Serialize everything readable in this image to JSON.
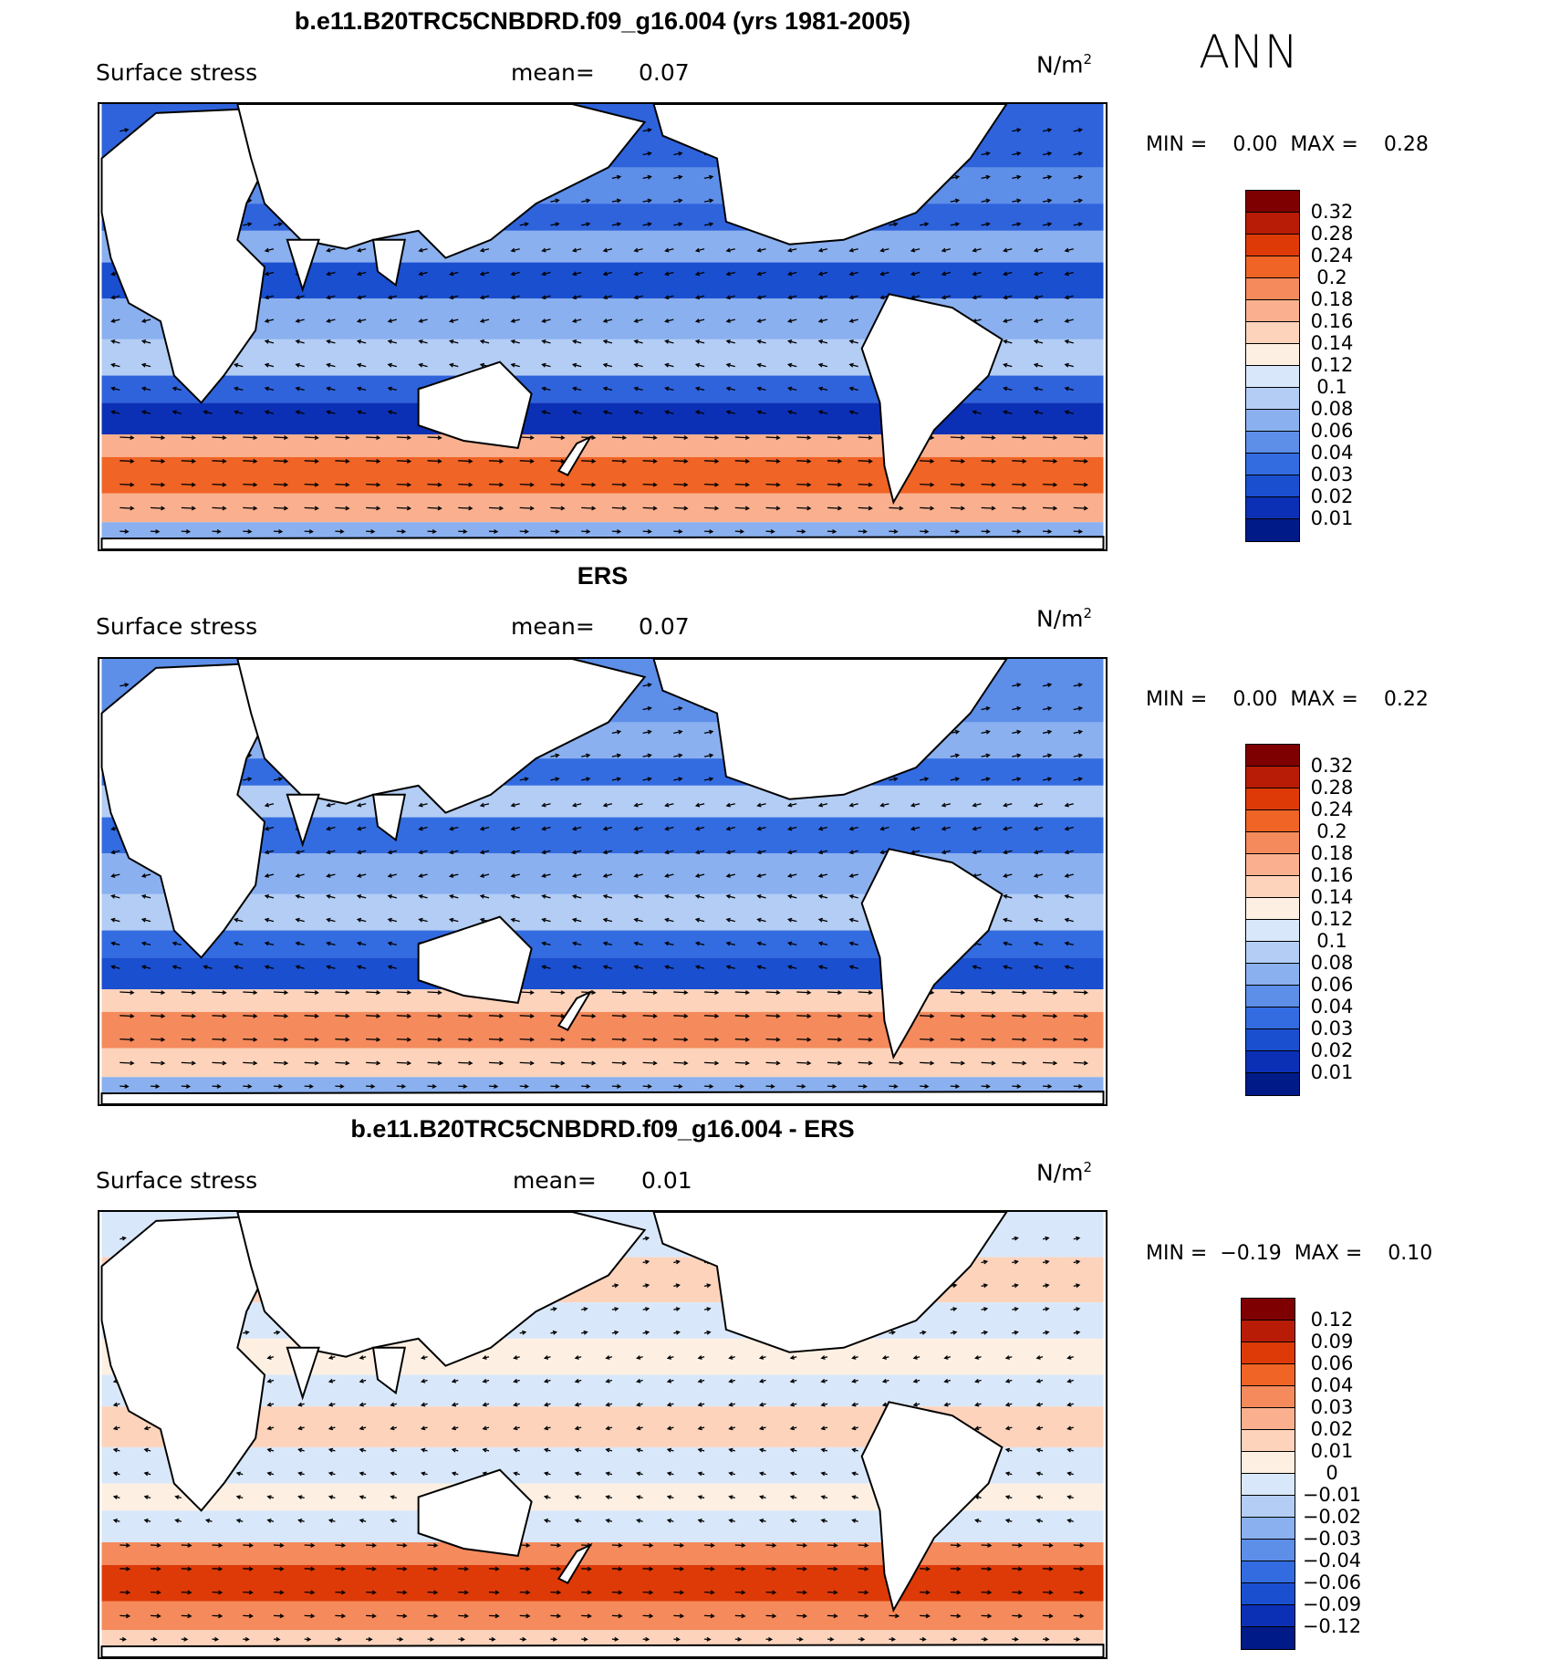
{
  "season": "ANN",
  "units_base": "N/m",
  "units_exp": "2",
  "field_label": "Surface stress",
  "mean_label": "mean=",
  "min_label": "MIN =",
  "max_label": "MAX =",
  "panels": [
    {
      "title": "b.e11.B20TRC5CNBDRD.f09_g16.004 (yrs 1981-2005)",
      "mean": "0.07",
      "min": "0.00",
      "max": "0.28"
    },
    {
      "title": "ERS",
      "mean": "0.07",
      "min": "0.00",
      "max": "0.22"
    },
    {
      "title": "b.e11.B20TRC5CNBDRD.f09_g16.004 - ERS",
      "mean": "0.01",
      "min": "−0.19",
      "max": "0.10"
    }
  ],
  "colorbars": {
    "abs": {
      "labels": [
        "0.32",
        "0.28",
        "0.24",
        "0.2",
        "0.18",
        "0.16",
        "0.14",
        "0.12",
        "0.1",
        "0.08",
        "0.06",
        "0.04",
        "0.03",
        "0.02",
        "0.01"
      ],
      "colors": [
        "#7f0000",
        "#b81c06",
        "#dd3a08",
        "#f06425",
        "#f58a5c",
        "#fab08f",
        "#fdd3bc",
        "#fdf0e2",
        "#d8e8fa",
        "#b3cdf5",
        "#8ab0ef",
        "#5d8ee8",
        "#336ce0",
        "#1a4fd0",
        "#0c30b5",
        "#001a88"
      ]
    },
    "diff": {
      "labels": [
        "0.12",
        "0.09",
        "0.06",
        "0.04",
        "0.03",
        "0.02",
        "0.01",
        "0",
        "−0.01",
        "−0.02",
        "−0.03",
        "−0.04",
        "−0.06",
        "−0.09",
        "−0.12"
      ],
      "colors": [
        "#7f0000",
        "#b81c06",
        "#dd3a08",
        "#f06425",
        "#f58a5c",
        "#fab08f",
        "#fdd3bc",
        "#fdf0e2",
        "#d8e8fa",
        "#b3cdf5",
        "#8ab0ef",
        "#5d8ee8",
        "#336ce0",
        "#1a4fd0",
        "#0c30b5",
        "#001a88"
      ]
    }
  }
}
